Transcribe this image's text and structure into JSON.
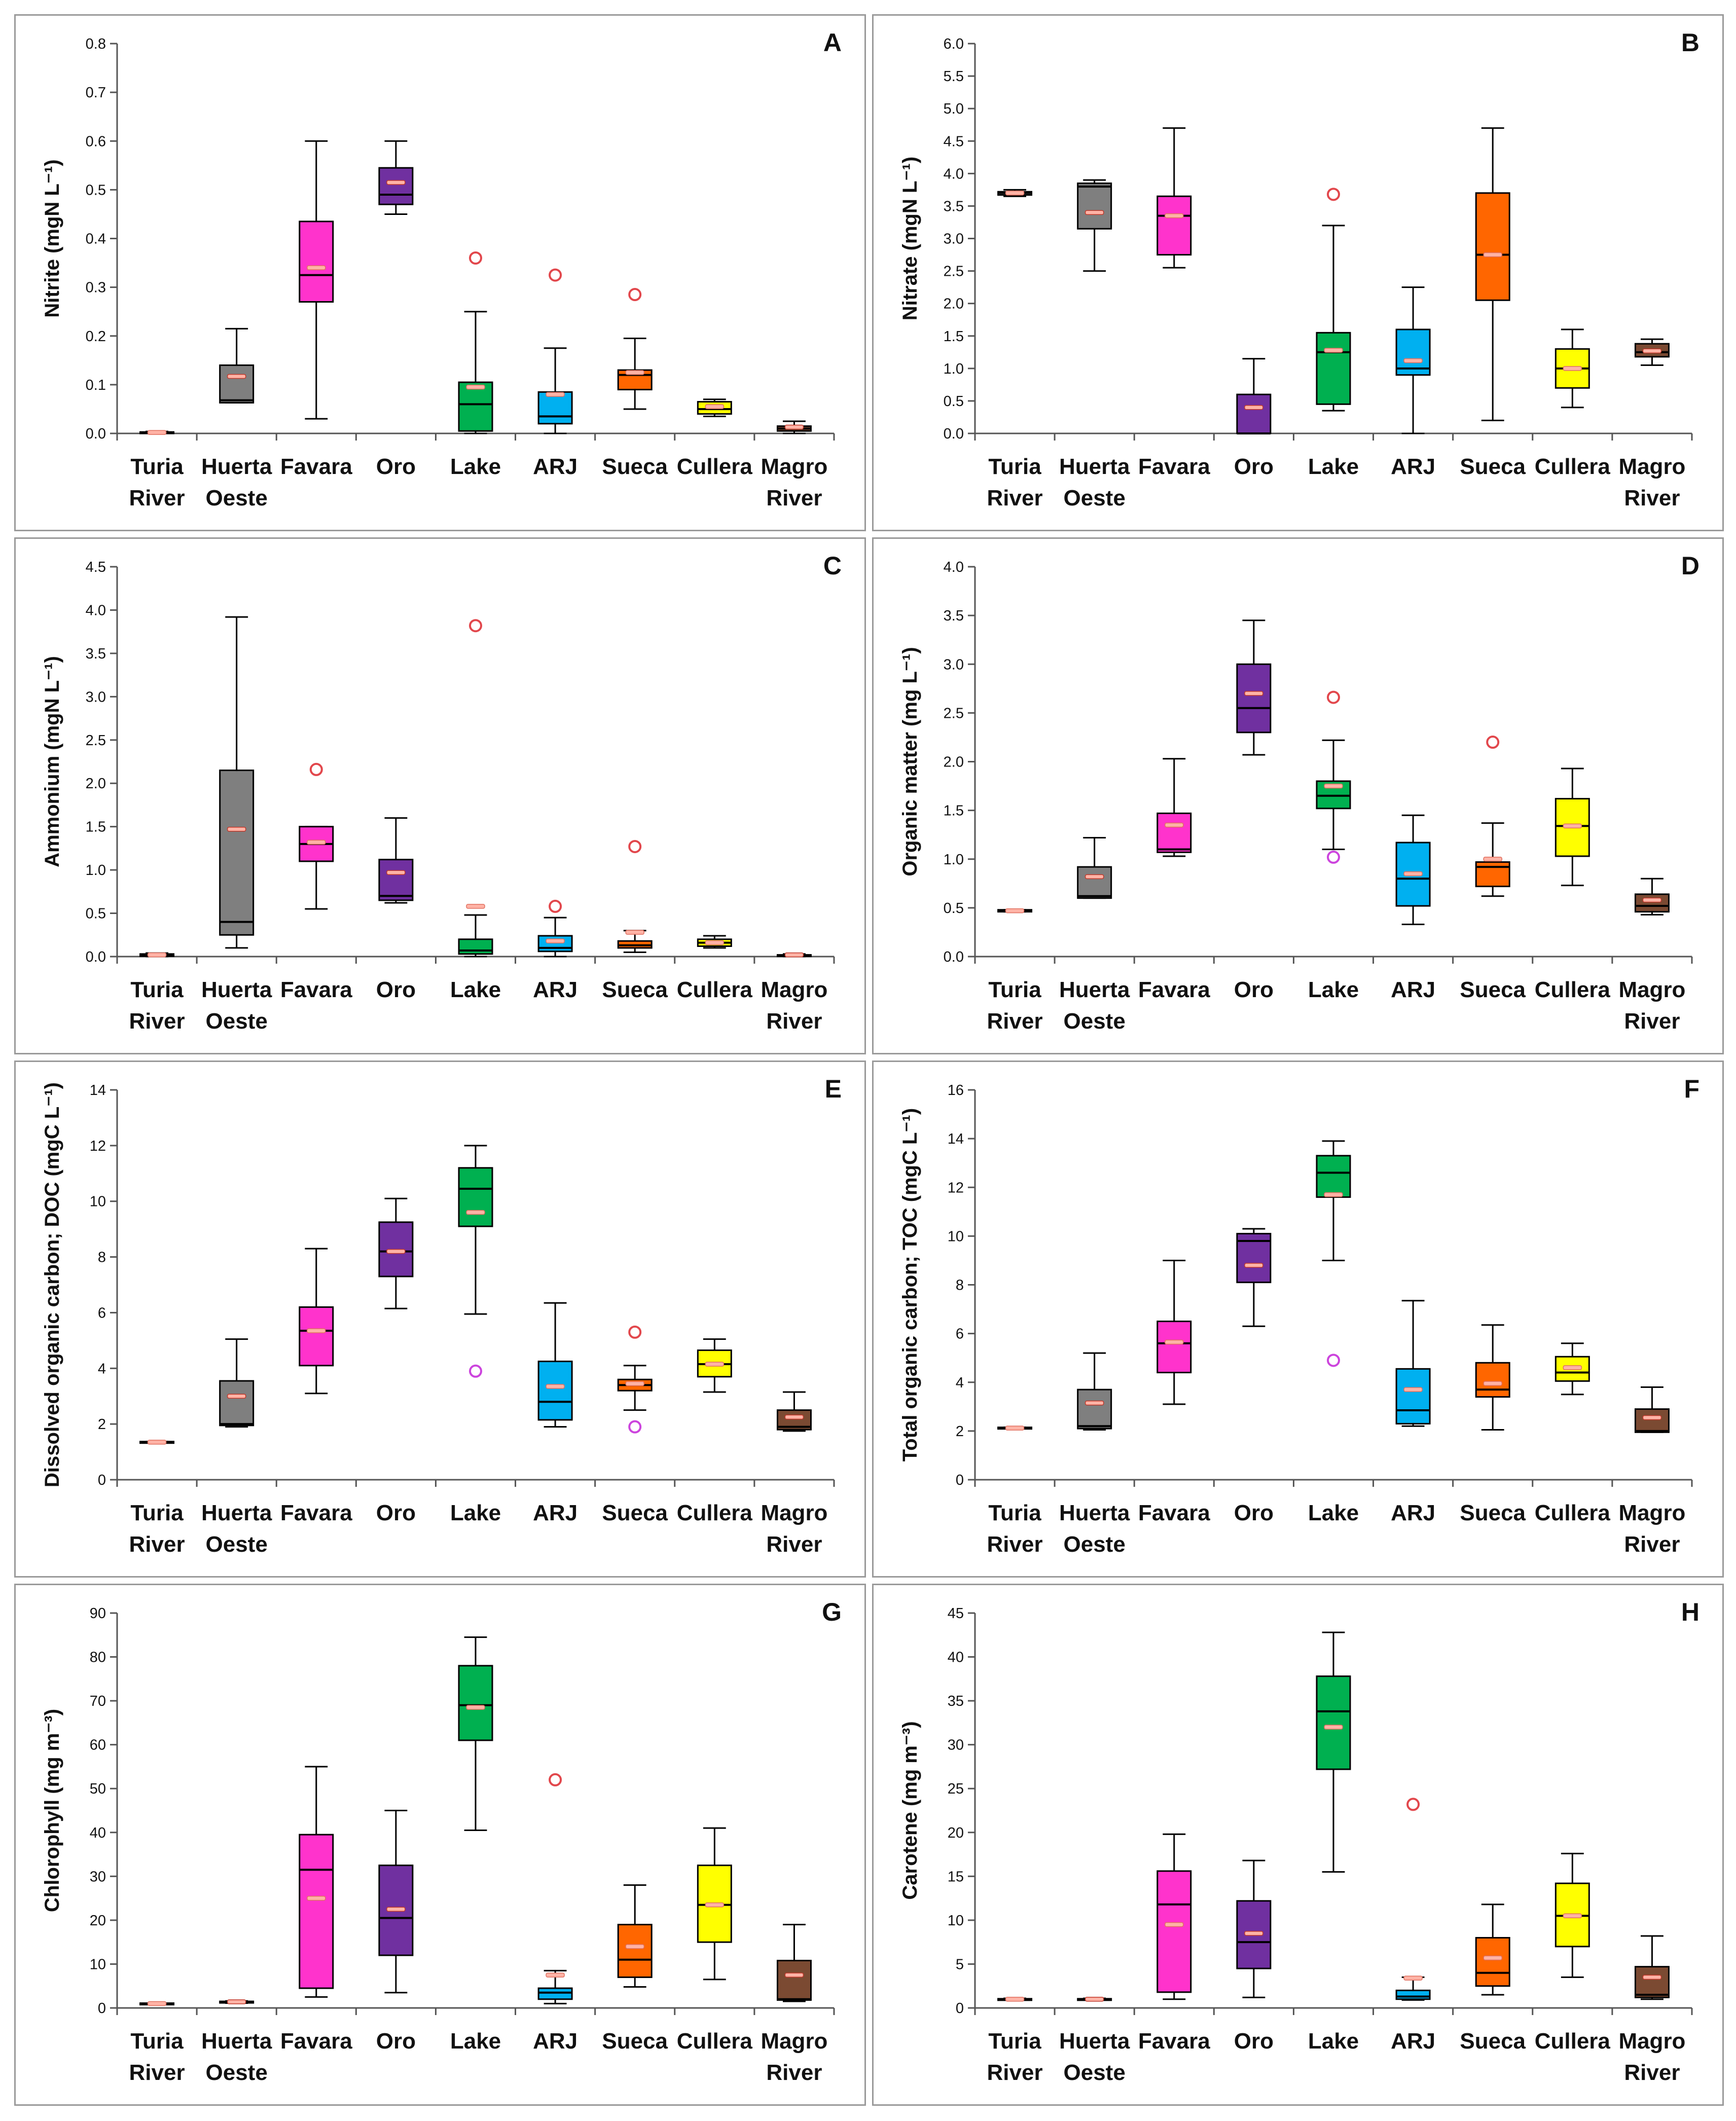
{
  "chart_data": [
    {
      "id": "A",
      "type": "box",
      "panel_label": "A",
      "ylabel": "Nitrite (mgN L⁻¹)",
      "ylim": [
        0,
        0.8
      ],
      "yticks": [
        0.0,
        0.1,
        0.2,
        0.3,
        0.4,
        0.5,
        0.6,
        0.7,
        0.8
      ],
      "tick_decimals": 1,
      "categories": [
        [
          "Turia",
          "River"
        ],
        [
          "Huerta",
          "Oeste"
        ],
        [
          "Favara"
        ],
        [
          "Oro"
        ],
        [
          "Lake"
        ],
        [
          "ARJ"
        ],
        [
          "Sueca"
        ],
        [
          "Cullera"
        ],
        [
          "Magro",
          "River"
        ]
      ],
      "boxes": [
        {
          "min": 0.0,
          "q1": 0.001,
          "median": 0.002,
          "q3": 0.003,
          "max": 0.004,
          "mean": 0.002
        },
        {
          "min": 0.063,
          "q1": 0.063,
          "median": 0.068,
          "q3": 0.14,
          "max": 0.215,
          "mean": 0.117
        },
        {
          "min": 0.03,
          "q1": 0.27,
          "median": 0.325,
          "q3": 0.435,
          "max": 0.6,
          "mean": 0.34
        },
        {
          "min": 0.45,
          "q1": 0.47,
          "median": 0.49,
          "q3": 0.545,
          "max": 0.6,
          "mean": 0.515
        },
        {
          "min": 0.0,
          "q1": 0.005,
          "median": 0.06,
          "q3": 0.105,
          "max": 0.25,
          "mean": 0.095
        },
        {
          "min": 0.0,
          "q1": 0.02,
          "median": 0.035,
          "q3": 0.085,
          "max": 0.175,
          "mean": 0.08
        },
        {
          "min": 0.05,
          "q1": 0.09,
          "median": 0.12,
          "q3": 0.13,
          "max": 0.195,
          "mean": 0.125
        },
        {
          "min": 0.035,
          "q1": 0.04,
          "median": 0.05,
          "q3": 0.065,
          "max": 0.07,
          "mean": 0.055
        },
        {
          "min": 0.0,
          "q1": 0.005,
          "median": 0.01,
          "q3": 0.015,
          "max": 0.025,
          "mean": 0.013
        }
      ],
      "outliers": [
        {
          "cat": 4,
          "value": 0.36
        },
        {
          "cat": 5,
          "value": 0.325
        },
        {
          "cat": 6,
          "value": 0.285
        }
      ]
    },
    {
      "id": "B",
      "type": "box",
      "panel_label": "B",
      "ylabel": "Nitrate (mgN L⁻¹)",
      "ylim": [
        0,
        6
      ],
      "yticks": [
        0.0,
        0.5,
        1.0,
        1.5,
        2.0,
        2.5,
        3.0,
        3.5,
        4.0,
        4.5,
        5.0,
        5.5,
        6.0
      ],
      "tick_decimals": 1,
      "categories": [
        [
          "Turia",
          "River"
        ],
        [
          "Huerta",
          "Oeste"
        ],
        [
          "Favara"
        ],
        [
          "Oro"
        ],
        [
          "Lake"
        ],
        [
          "ARJ"
        ],
        [
          "Sueca"
        ],
        [
          "Cullera"
        ],
        [
          "Magro",
          "River"
        ]
      ],
      "boxes": [
        {
          "min": 3.65,
          "q1": 3.67,
          "median": 3.7,
          "q3": 3.72,
          "max": 3.75,
          "mean": 3.7
        },
        {
          "min": 2.5,
          "q1": 3.15,
          "median": 3.8,
          "q3": 3.85,
          "max": 3.9,
          "mean": 3.4
        },
        {
          "min": 2.55,
          "q1": 2.75,
          "median": 3.35,
          "q3": 3.65,
          "max": 4.7,
          "mean": 3.35
        },
        {
          "min": 0.0,
          "q1": 0.0,
          "median": 0.0,
          "q3": 0.6,
          "max": 1.15,
          "mean": 0.4
        },
        {
          "min": 0.35,
          "q1": 0.45,
          "median": 1.25,
          "q3": 1.55,
          "max": 3.2,
          "mean": 1.28
        },
        {
          "min": 0.0,
          "q1": 0.9,
          "median": 1.0,
          "q3": 1.6,
          "max": 2.25,
          "mean": 1.12
        },
        {
          "min": 0.2,
          "q1": 2.05,
          "median": 2.75,
          "q3": 3.7,
          "max": 4.7,
          "mean": 2.75
        },
        {
          "min": 0.4,
          "q1": 0.7,
          "median": 1.0,
          "q3": 1.3,
          "max": 1.6,
          "mean": 1.0
        },
        {
          "min": 1.05,
          "q1": 1.18,
          "median": 1.25,
          "q3": 1.38,
          "max": 1.45,
          "mean": 1.27
        }
      ],
      "outliers": [
        {
          "cat": 4,
          "value": 3.68
        }
      ]
    },
    {
      "id": "C",
      "type": "box",
      "panel_label": "C",
      "ylabel": "Ammonium (mgN L⁻¹)",
      "ylim": [
        0,
        4.5
      ],
      "yticks": [
        0.0,
        0.5,
        1.0,
        1.5,
        2.0,
        2.5,
        3.0,
        3.5,
        4.0,
        4.5
      ],
      "tick_decimals": 1,
      "categories": [
        [
          "Turia",
          "River"
        ],
        [
          "Huerta",
          "Oeste"
        ],
        [
          "Favara"
        ],
        [
          "Oro"
        ],
        [
          "Lake"
        ],
        [
          "ARJ"
        ],
        [
          "Sueca"
        ],
        [
          "Cullera"
        ],
        [
          "Magro",
          "River"
        ]
      ],
      "boxes": [
        {
          "min": 0.0,
          "q1": 0.005,
          "median": 0.01,
          "q3": 0.03,
          "max": 0.04,
          "mean": 0.02
        },
        {
          "min": 0.1,
          "q1": 0.25,
          "median": 0.4,
          "q3": 2.15,
          "max": 3.92,
          "mean": 1.47
        },
        {
          "min": 0.55,
          "q1": 1.1,
          "median": 1.3,
          "q3": 1.5,
          "max": 1.5,
          "mean": 1.32
        },
        {
          "min": 0.62,
          "q1": 0.65,
          "median": 0.7,
          "q3": 1.12,
          "max": 1.6,
          "mean": 0.97
        },
        {
          "min": 0.0,
          "q1": 0.03,
          "median": 0.07,
          "q3": 0.2,
          "max": 0.48,
          "mean": 0.58
        },
        {
          "min": 0.0,
          "q1": 0.06,
          "median": 0.1,
          "q3": 0.24,
          "max": 0.45,
          "mean": 0.18
        },
        {
          "min": 0.05,
          "q1": 0.1,
          "median": 0.13,
          "q3": 0.18,
          "max": 0.3,
          "mean": 0.28
        },
        {
          "min": 0.1,
          "q1": 0.12,
          "median": 0.16,
          "q3": 0.2,
          "max": 0.24,
          "mean": 0.16
        },
        {
          "min": 0.0,
          "q1": 0.005,
          "median": 0.01,
          "q3": 0.02,
          "max": 0.03,
          "mean": 0.02
        }
      ],
      "outliers": [
        {
          "cat": 2,
          "value": 2.16
        },
        {
          "cat": 4,
          "value": 3.82
        },
        {
          "cat": 5,
          "value": 0.58
        },
        {
          "cat": 6,
          "value": 1.27
        }
      ]
    },
    {
      "id": "D",
      "type": "box",
      "panel_label": "D",
      "ylabel": "Organic matter (mg L⁻¹)",
      "ylim": [
        0,
        4
      ],
      "yticks": [
        0.0,
        0.5,
        1.0,
        1.5,
        2.0,
        2.5,
        3.0,
        3.5,
        4.0
      ],
      "tick_decimals": 1,
      "categories": [
        [
          "Turia",
          "River"
        ],
        [
          "Huerta",
          "Oeste"
        ],
        [
          "Favara"
        ],
        [
          "Oro"
        ],
        [
          "Lake"
        ],
        [
          "ARJ"
        ],
        [
          "Sueca"
        ],
        [
          "Cullera"
        ],
        [
          "Magro",
          "River"
        ]
      ],
      "boxes": [
        {
          "min": 0.46,
          "q1": 0.46,
          "median": 0.47,
          "q3": 0.48,
          "max": 0.48,
          "mean": 0.47
        },
        {
          "min": 0.6,
          "q1": 0.6,
          "median": 0.62,
          "q3": 0.92,
          "max": 1.22,
          "mean": 0.82
        },
        {
          "min": 1.03,
          "q1": 1.07,
          "median": 1.1,
          "q3": 1.47,
          "max": 2.03,
          "mean": 1.35
        },
        {
          "min": 2.07,
          "q1": 2.3,
          "median": 2.55,
          "q3": 3.0,
          "max": 3.45,
          "mean": 2.7
        },
        {
          "min": 1.1,
          "q1": 1.52,
          "median": 1.65,
          "q3": 1.8,
          "max": 2.22,
          "mean": 1.75
        },
        {
          "min": 0.33,
          "q1": 0.52,
          "median": 0.8,
          "q3": 1.17,
          "max": 1.45,
          "mean": 0.85
        },
        {
          "min": 0.62,
          "q1": 0.72,
          "median": 0.92,
          "q3": 0.97,
          "max": 1.37,
          "mean": 1.0
        },
        {
          "min": 0.73,
          "q1": 1.03,
          "median": 1.34,
          "q3": 1.62,
          "max": 1.93,
          "mean": 1.34
        },
        {
          "min": 0.43,
          "q1": 0.46,
          "median": 0.52,
          "q3": 0.64,
          "max": 0.8,
          "mean": 0.58
        }
      ],
      "outliers": [
        {
          "cat": 4,
          "value": 2.66
        },
        {
          "cat": 4,
          "value": 1.02,
          "violet": true
        },
        {
          "cat": 6,
          "value": 2.2
        }
      ]
    },
    {
      "id": "E",
      "type": "box",
      "panel_label": "E",
      "ylabel": "Dissolved organic carbon; DOC (mgC L⁻¹)",
      "ylim": [
        0,
        14
      ],
      "yticks": [
        0,
        2,
        4,
        6,
        8,
        10,
        12,
        14
      ],
      "tick_decimals": 0,
      "categories": [
        [
          "Turia",
          "River"
        ],
        [
          "Huerta",
          "Oeste"
        ],
        [
          "Favara"
        ],
        [
          "Oro"
        ],
        [
          "Lake"
        ],
        [
          "ARJ"
        ],
        [
          "Sueca"
        ],
        [
          "Cullera"
        ],
        [
          "Magro",
          "River"
        ]
      ],
      "boxes": [
        {
          "min": 1.33,
          "q1": 1.33,
          "median": 1.35,
          "q3": 1.37,
          "max": 1.37,
          "mean": 1.35
        },
        {
          "min": 1.9,
          "q1": 1.95,
          "median": 2.0,
          "q3": 3.55,
          "max": 5.05,
          "mean": 3.0
        },
        {
          "min": 3.1,
          "q1": 4.1,
          "median": 5.35,
          "q3": 6.2,
          "max": 8.3,
          "mean": 5.35
        },
        {
          "min": 6.15,
          "q1": 7.3,
          "median": 8.2,
          "q3": 9.25,
          "max": 10.1,
          "mean": 8.2
        },
        {
          "min": 5.95,
          "q1": 9.1,
          "median": 10.45,
          "q3": 11.2,
          "max": 12.0,
          "mean": 9.6
        },
        {
          "min": 1.9,
          "q1": 2.15,
          "median": 2.8,
          "q3": 4.25,
          "max": 6.35,
          "mean": 3.35
        },
        {
          "min": 2.5,
          "q1": 3.2,
          "median": 3.4,
          "q3": 3.6,
          "max": 4.1,
          "mean": 3.45
        },
        {
          "min": 3.15,
          "q1": 3.7,
          "median": 4.15,
          "q3": 4.65,
          "max": 5.05,
          "mean": 4.15
        },
        {
          "min": 1.75,
          "q1": 1.8,
          "median": 1.9,
          "q3": 2.5,
          "max": 3.15,
          "mean": 2.25
        }
      ],
      "outliers": [
        {
          "cat": 4,
          "value": 3.9,
          "violet": true
        },
        {
          "cat": 6,
          "value": 5.3
        },
        {
          "cat": 6,
          "value": 1.9,
          "violet": true
        }
      ]
    },
    {
      "id": "F",
      "type": "box",
      "panel_label": "F",
      "ylabel": "Total organic carbon; TOC (mgC L⁻¹)",
      "ylim": [
        0,
        16
      ],
      "yticks": [
        0,
        2,
        4,
        6,
        8,
        10,
        12,
        14,
        16
      ],
      "tick_decimals": 0,
      "categories": [
        [
          "Turia",
          "River"
        ],
        [
          "Huerta",
          "Oeste"
        ],
        [
          "Favara"
        ],
        [
          "Oro"
        ],
        [
          "Lake"
        ],
        [
          "ARJ"
        ],
        [
          "Sueca"
        ],
        [
          "Cullera"
        ],
        [
          "Magro",
          "River"
        ]
      ],
      "boxes": [
        {
          "min": 2.1,
          "q1": 2.1,
          "median": 2.12,
          "q3": 2.15,
          "max": 2.15,
          "mean": 2.12
        },
        {
          "min": 2.05,
          "q1": 2.1,
          "median": 2.2,
          "q3": 3.7,
          "max": 5.2,
          "mean": 3.15
        },
        {
          "min": 3.1,
          "q1": 4.4,
          "median": 5.6,
          "q3": 6.5,
          "max": 9.0,
          "mean": 5.65
        },
        {
          "min": 6.3,
          "q1": 8.1,
          "median": 9.8,
          "q3": 10.1,
          "max": 10.3,
          "mean": 8.8
        },
        {
          "min": 9.0,
          "q1": 11.6,
          "median": 12.6,
          "q3": 13.3,
          "max": 13.9,
          "mean": 11.7
        },
        {
          "min": 2.2,
          "q1": 2.3,
          "median": 2.85,
          "q3": 4.55,
          "max": 7.35,
          "mean": 3.7
        },
        {
          "min": 2.05,
          "q1": 3.4,
          "median": 3.7,
          "q3": 4.8,
          "max": 6.35,
          "mean": 3.95
        },
        {
          "min": 3.5,
          "q1": 4.05,
          "median": 4.4,
          "q3": 5.05,
          "max": 5.6,
          "mean": 4.6
        },
        {
          "min": 1.95,
          "q1": 1.95,
          "median": 2.0,
          "q3": 2.9,
          "max": 3.8,
          "mean": 2.55
        }
      ],
      "outliers": [
        {
          "cat": 4,
          "value": 4.9,
          "violet": true
        }
      ]
    },
    {
      "id": "G",
      "type": "box",
      "panel_label": "G",
      "ylabel": "Chlorophyll (mg m⁻³)",
      "ylim": [
        0,
        90
      ],
      "yticks": [
        0,
        10,
        20,
        30,
        40,
        50,
        60,
        70,
        80,
        90
      ],
      "tick_decimals": 0,
      "categories": [
        [
          "Turia",
          "River"
        ],
        [
          "Huerta",
          "Oeste"
        ],
        [
          "Favara"
        ],
        [
          "Oro"
        ],
        [
          "Lake"
        ],
        [
          "ARJ"
        ],
        [
          "Sueca"
        ],
        [
          "Cullera"
        ],
        [
          "Magro",
          "River"
        ]
      ],
      "boxes": [
        {
          "min": 0.9,
          "q1": 0.9,
          "median": 1.0,
          "q3": 1.1,
          "max": 1.1,
          "mean": 1.0
        },
        {
          "min": 1.1,
          "q1": 1.2,
          "median": 1.3,
          "q3": 1.5,
          "max": 1.6,
          "mean": 1.4
        },
        {
          "min": 2.5,
          "q1": 4.5,
          "median": 31.5,
          "q3": 39.5,
          "max": 55.0,
          "mean": 25.0
        },
        {
          "min": 3.5,
          "q1": 12.0,
          "median": 20.5,
          "q3": 32.5,
          "max": 45.0,
          "mean": 22.5
        },
        {
          "min": 40.5,
          "q1": 61.0,
          "median": 69.0,
          "q3": 78.0,
          "max": 84.5,
          "mean": 68.5
        },
        {
          "min": 1.0,
          "q1": 2.0,
          "median": 3.5,
          "q3": 4.5,
          "max": 8.5,
          "mean": 7.5
        },
        {
          "min": 4.8,
          "q1": 7.0,
          "median": 11.0,
          "q3": 19.0,
          "max": 28.0,
          "mean": 14.0
        },
        {
          "min": 6.5,
          "q1": 15.0,
          "median": 23.5,
          "q3": 32.5,
          "max": 41.0,
          "mean": 23.5
        },
        {
          "min": 1.5,
          "q1": 1.8,
          "median": 2.0,
          "q3": 10.8,
          "max": 19.0,
          "mean": 7.5
        }
      ],
      "outliers": [
        {
          "cat": 5,
          "value": 52.0
        }
      ]
    },
    {
      "id": "H",
      "type": "box",
      "panel_label": "H",
      "ylabel": "Carotene (mg m⁻³)",
      "ylim": [
        0,
        45
      ],
      "yticks": [
        0,
        5,
        10,
        15,
        20,
        25,
        30,
        35,
        40,
        45
      ],
      "tick_decimals": 0,
      "categories": [
        [
          "Turia",
          "River"
        ],
        [
          "Huerta",
          "Oeste"
        ],
        [
          "Favara"
        ],
        [
          "Oro"
        ],
        [
          "Lake"
        ],
        [
          "ARJ"
        ],
        [
          "Sueca"
        ],
        [
          "Cullera"
        ],
        [
          "Magro",
          "River"
        ]
      ],
      "boxes": [
        {
          "min": 0.9,
          "q1": 0.95,
          "median": 1.0,
          "q3": 1.05,
          "max": 1.1,
          "mean": 1.0
        },
        {
          "min": 0.9,
          "q1": 0.95,
          "median": 1.0,
          "q3": 1.05,
          "max": 1.1,
          "mean": 1.0
        },
        {
          "min": 1.0,
          "q1": 1.8,
          "median": 11.8,
          "q3": 15.6,
          "max": 19.8,
          "mean": 9.5
        },
        {
          "min": 1.2,
          "q1": 4.5,
          "median": 7.5,
          "q3": 12.2,
          "max": 16.8,
          "mean": 8.5
        },
        {
          "min": 15.5,
          "q1": 27.2,
          "median": 33.8,
          "q3": 37.8,
          "max": 42.8,
          "mean": 32.0
        },
        {
          "min": 0.9,
          "q1": 1.0,
          "median": 1.3,
          "q3": 2.0,
          "max": 3.5,
          "mean": 3.4
        },
        {
          "min": 1.5,
          "q1": 2.5,
          "median": 4.0,
          "q3": 8.0,
          "max": 11.8,
          "mean": 5.7
        },
        {
          "min": 3.5,
          "q1": 7.0,
          "median": 10.5,
          "q3": 14.2,
          "max": 17.6,
          "mean": 10.5
        },
        {
          "min": 1.0,
          "q1": 1.2,
          "median": 1.5,
          "q3": 4.7,
          "max": 8.2,
          "mean": 3.5
        }
      ],
      "outliers": [
        {
          "cat": 5,
          "value": 23.2
        }
      ]
    }
  ],
  "colors": {
    "boxes": [
      "#9b9b9b",
      "#7f7f7f",
      "#ff33cc",
      "#7030a0",
      "#00b050",
      "#00b0f0",
      "#ff6600",
      "#ffff00",
      "#7b4a32"
    ],
    "outlier_red": "#e2474c",
    "outlier_violet": "#cc44dd",
    "mean_light": "#ffb3a6",
    "mean_dark": "#c0392b",
    "axis": "#555555",
    "border": "#9a9a9a"
  }
}
